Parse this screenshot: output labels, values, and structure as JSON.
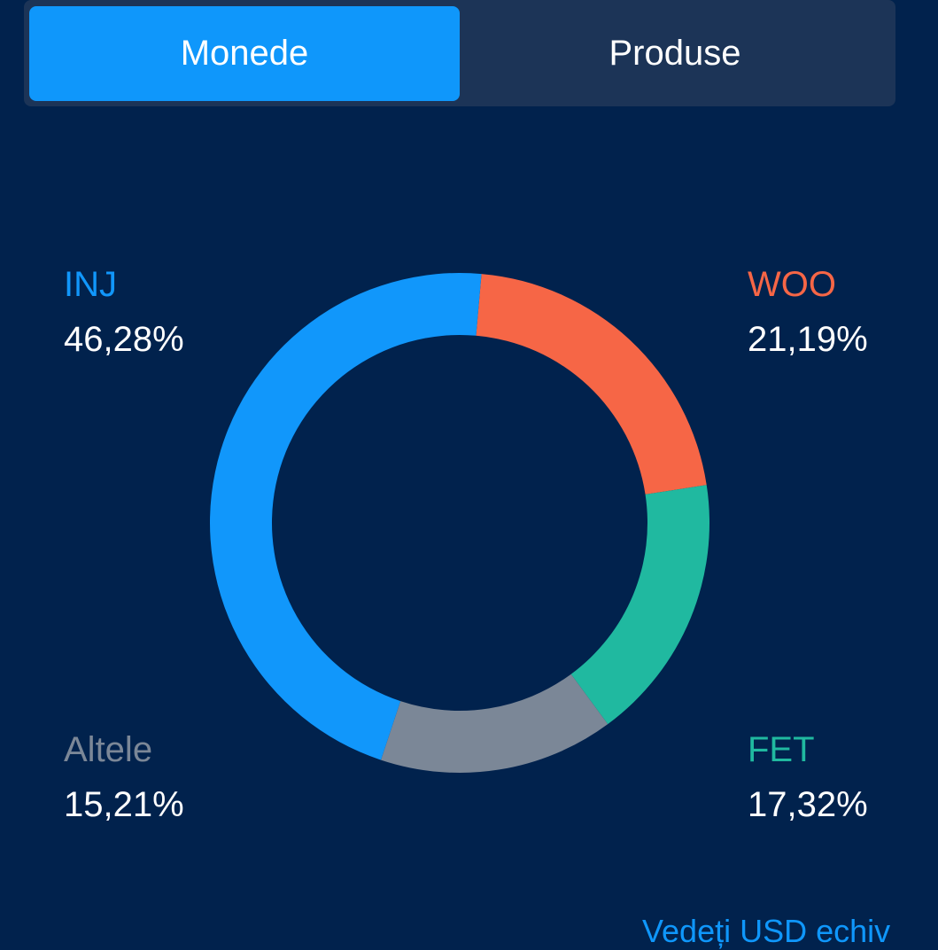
{
  "tabs": {
    "coins_label": "Monede",
    "products_label": "Produse"
  },
  "chart_data": {
    "type": "pie",
    "title": "",
    "slices": [
      {
        "label": "INJ",
        "value": 46.28,
        "display": "46,28%",
        "color": "#1197fb"
      },
      {
        "label": "WOO",
        "value": 21.19,
        "display": "21,19%",
        "color": "#f66646"
      },
      {
        "label": "FET",
        "value": 17.32,
        "display": "17,32%",
        "color": "#20b9a0"
      },
      {
        "label": "Altele",
        "value": 15.21,
        "display": "15,21%",
        "color": "#7b8797"
      }
    ]
  },
  "labels": {
    "inj": {
      "name": "INJ",
      "value": "46,28%"
    },
    "woo": {
      "name": "WOO",
      "value": "21,19%"
    },
    "fet": {
      "name": "FET",
      "value": "17,32%"
    },
    "other": {
      "name": "Altele",
      "value": "15,21%"
    }
  },
  "colors": {
    "background": "#01224d",
    "tab_bar": "#1c3457",
    "accent": "#0f97fb",
    "inj": "#1197fb",
    "woo": "#f66646",
    "fet": "#20b9a0",
    "other": "#7b8797"
  },
  "footer": {
    "link_text": "Vedeți USD echiv"
  }
}
